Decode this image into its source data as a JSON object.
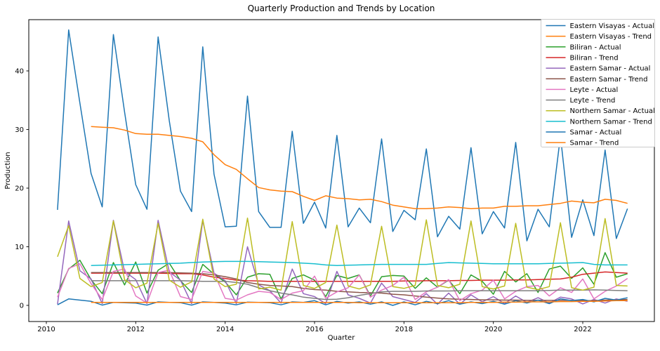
{
  "chart_data": {
    "type": "line",
    "title": "Quarterly Production and Trends by Location",
    "xlabel": "Quarter",
    "ylabel": "Production",
    "grid": false,
    "legend_position": "upper right",
    "xlim": [
      2009.64,
      2023.6
    ],
    "ylim": [
      -2.75,
      48.7
    ],
    "x_ticks": [
      2010,
      2012,
      2014,
      2016,
      2018,
      2020,
      2022
    ],
    "y_ticks": [
      0,
      10,
      20,
      30,
      40
    ],
    "x_actual": [
      2010.25,
      2010.5,
      2010.75,
      2011.0,
      2011.25,
      2011.5,
      2011.75,
      2012.0,
      2012.25,
      2012.5,
      2012.75,
      2013.0,
      2013.25,
      2013.5,
      2013.75,
      2014.0,
      2014.25,
      2014.5,
      2014.75,
      2015.0,
      2015.25,
      2015.5,
      2015.75,
      2016.0,
      2016.25,
      2016.5,
      2016.75,
      2017.0,
      2017.25,
      2017.5,
      2017.75,
      2018.0,
      2018.25,
      2018.5,
      2018.75,
      2019.0,
      2019.25,
      2019.5,
      2019.75,
      2020.0,
      2020.25,
      2020.5,
      2020.75,
      2021.0,
      2021.25,
      2021.5,
      2021.75,
      2022.0,
      2022.25,
      2022.5,
      2022.75,
      2023.0
    ],
    "x_trend": [
      2011.0,
      2011.25,
      2011.5,
      2011.75,
      2012.0,
      2012.25,
      2012.5,
      2012.75,
      2013.0,
      2013.25,
      2013.5,
      2013.75,
      2014.0,
      2014.25,
      2014.5,
      2014.75,
      2015.0,
      2015.25,
      2015.5,
      2015.75,
      2016.0,
      2016.25,
      2016.5,
      2016.75,
      2017.0,
      2017.25,
      2017.5,
      2017.75,
      2018.0,
      2018.25,
      2018.5,
      2018.75,
      2019.0,
      2019.25,
      2019.5,
      2019.75,
      2020.0,
      2020.25,
      2020.5,
      2020.75,
      2021.0,
      2021.25,
      2021.5,
      2021.75,
      2022.0,
      2022.25,
      2022.5,
      2022.75,
      2023.0
    ],
    "series": [
      {
        "name": "Eastern Visayas - Actual",
        "color": "#1f77b4",
        "x": "x_actual",
        "values": [
          16.3,
          47.0,
          34.5,
          22.5,
          16.8,
          46.2,
          33.0,
          20.6,
          16.4,
          45.8,
          31.5,
          19.5,
          16.0,
          44.1,
          22.4,
          13.4,
          13.5,
          35.7,
          16.0,
          13.3,
          13.3,
          29.7,
          14.0,
          17.6,
          13.2,
          29.0,
          13.4,
          16.6,
          14.1,
          28.4,
          12.6,
          16.2,
          14.6,
          26.7,
          11.7,
          15.2,
          13.0,
          26.9,
          12.2,
          16.0,
          13.2,
          27.8,
          11.0,
          16.4,
          13.4,
          28.9,
          11.6,
          18.0,
          11.9,
          26.5,
          11.4,
          16.5
        ]
      },
      {
        "name": "Eastern Visayas - Trend",
        "color": "#ff7f0e",
        "x": "x_trend",
        "values": [
          30.5,
          30.4,
          30.3,
          29.9,
          29.3,
          29.2,
          29.2,
          29.0,
          28.8,
          28.5,
          27.9,
          25.7,
          24.0,
          23.2,
          21.6,
          20.1,
          19.7,
          19.5,
          19.4,
          18.6,
          17.9,
          18.7,
          18.3,
          18.2,
          18.0,
          18.1,
          17.7,
          17.1,
          16.8,
          16.5,
          16.5,
          16.6,
          16.8,
          16.7,
          16.5,
          16.6,
          16.6,
          16.9,
          16.9,
          17.0,
          17.0,
          17.2,
          17.4,
          17.8,
          17.6,
          17.5,
          18.1,
          17.9,
          17.4
        ]
      },
      {
        "name": "Biliran - Actual",
        "color": "#2ca02c",
        "x": "x_actual",
        "values": [
          2.1,
          6.2,
          7.7,
          4.4,
          2.0,
          7.3,
          3.5,
          7.4,
          2.1,
          6.0,
          7.2,
          4.2,
          2.2,
          7.0,
          5.3,
          4.0,
          1.8,
          4.8,
          5.4,
          5.3,
          1.1,
          4.6,
          5.2,
          4.3,
          1.5,
          5.1,
          4.6,
          5.2,
          1.6,
          4.9,
          5.1,
          5.0,
          2.9,
          4.7,
          3.1,
          4.3,
          2.0,
          5.2,
          4.1,
          1.9,
          5.8,
          4.0,
          5.4,
          2.2,
          6.2,
          6.7,
          4.6,
          6.4,
          3.6,
          9.0,
          4.8,
          5.4
        ]
      },
      {
        "name": "Biliran - Trend",
        "color": "#d62728",
        "x": "x_trend",
        "values": [
          5.5,
          5.5,
          5.5,
          5.5,
          5.5,
          5.5,
          5.5,
          5.45,
          5.4,
          5.4,
          5.2,
          4.8,
          4.6,
          4.3,
          4.2,
          4.15,
          4.1,
          4.1,
          4.1,
          4.1,
          4.1,
          4.1,
          4.1,
          4.1,
          4.1,
          4.1,
          4.1,
          4.1,
          4.15,
          4.15,
          4.2,
          4.2,
          4.2,
          4.25,
          4.25,
          4.3,
          4.3,
          4.3,
          4.35,
          4.35,
          4.4,
          4.45,
          4.5,
          4.8,
          5.3,
          5.5,
          5.7,
          5.6,
          5.5
        ]
      },
      {
        "name": "Eastern Samar - Actual",
        "color": "#9467bd",
        "x": "x_actual",
        "values": [
          0.2,
          14.4,
          5.9,
          4.5,
          0.3,
          14.5,
          5.8,
          4.4,
          0.3,
          14.5,
          5.7,
          4.3,
          0.3,
          14.5,
          5.5,
          4.2,
          0.3,
          10.0,
          3.5,
          2.5,
          0.4,
          6.2,
          2.0,
          1.5,
          0.3,
          5.8,
          1.8,
          1.2,
          0.4,
          3.8,
          1.5,
          1.0,
          0.5,
          2.0,
          0.2,
          2.1,
          0.2,
          1.8,
          0.6,
          1.5,
          0.3,
          1.6,
          0.5,
          1.3,
          0.4,
          1.4,
          1.1,
          0.25,
          1.0,
          0.4,
          1.1,
          0.7
        ]
      },
      {
        "name": "Eastern Samar - Trend",
        "color": "#8c564b",
        "x": "x_trend",
        "values": [
          5.6,
          5.6,
          5.6,
          5.6,
          5.6,
          5.6,
          5.6,
          5.6,
          5.55,
          5.5,
          5.4,
          5.2,
          4.9,
          4.5,
          3.9,
          3.6,
          3.4,
          3.3,
          3.2,
          2.9,
          2.7,
          2.6,
          2.4,
          2.3,
          2.2,
          2.15,
          2.1,
          1.9,
          1.8,
          1.6,
          1.4,
          1.25,
          1.1,
          1.05,
          1.0,
          0.95,
          0.95,
          0.9,
          0.9,
          0.85,
          0.85,
          0.85,
          0.85,
          0.85,
          0.8,
          0.8,
          0.9,
          0.95,
          1.0
        ]
      },
      {
        "name": "Leyte - Actual",
        "color": "#e377c2",
        "x": "x_actual",
        "values": [
          1.4,
          6.3,
          7.1,
          3.7,
          1.0,
          5.8,
          6.2,
          1.6,
          0.4,
          5.6,
          6.0,
          1.5,
          1.0,
          5.8,
          5.5,
          1.2,
          0.9,
          1.8,
          2.4,
          2.2,
          1.0,
          2.1,
          2.5,
          5.0,
          1.2,
          2.3,
          3.0,
          5.2,
          1.4,
          2.6,
          3.4,
          4.8,
          1.0,
          2.3,
          3.1,
          4.4,
          0.8,
          2.0,
          2.6,
          4.3,
          1.1,
          2.4,
          3.2,
          3.4,
          1.6,
          3.0,
          2.2,
          4.5,
          1.1,
          2.4,
          3.3,
          4.6
        ]
      },
      {
        "name": "Leyte - Trend",
        "color": "#7f7f7f",
        "x": "x_trend",
        "values": [
          4.2,
          4.2,
          4.2,
          4.2,
          4.2,
          4.2,
          4.2,
          4.2,
          4.2,
          4.15,
          4.1,
          4.1,
          4.1,
          3.9,
          3.6,
          3.0,
          2.5,
          2.1,
          1.8,
          1.4,
          1.2,
          1.0,
          1.05,
          1.3,
          1.7,
          2.0,
          2.3,
          2.4,
          2.4,
          2.4,
          2.45,
          2.45,
          2.45,
          2.5,
          2.5,
          2.5,
          2.5,
          2.5,
          2.5,
          2.5,
          2.5,
          2.55,
          2.6,
          2.6,
          2.6,
          2.65,
          2.6,
          2.55,
          2.5
        ]
      },
      {
        "name": "Northern Samar - Actual",
        "color": "#bcbd22",
        "x": "x_actual",
        "values": [
          8.3,
          13.6,
          4.6,
          3.2,
          3.9,
          14.4,
          4.4,
          3.0,
          3.8,
          14.0,
          4.3,
          3.1,
          4.0,
          14.7,
          4.5,
          3.2,
          3.6,
          14.9,
          2.8,
          3.1,
          2.6,
          14.3,
          3.4,
          2.9,
          3.9,
          13.7,
          3.3,
          2.8,
          3.5,
          13.5,
          3.2,
          2.9,
          3.4,
          14.6,
          3.4,
          3.0,
          3.6,
          14.4,
          3.2,
          2.8,
          3.3,
          14.0,
          3.1,
          2.7,
          3.2,
          14.1,
          3.0,
          2.6,
          3.1,
          14.8,
          3.4,
          3.3
        ]
      },
      {
        "name": "Northern Samar - Trend",
        "color": "#17becf",
        "x": "x_trend",
        "values": [
          6.8,
          6.85,
          6.9,
          6.95,
          7.0,
          7.05,
          7.1,
          7.15,
          7.2,
          7.3,
          7.4,
          7.45,
          7.5,
          7.5,
          7.5,
          7.45,
          7.4,
          7.35,
          7.3,
          7.2,
          7.1,
          6.9,
          6.8,
          6.85,
          6.9,
          6.95,
          7.0,
          7.0,
          7.0,
          7.0,
          7.0,
          7.15,
          7.3,
          7.25,
          7.2,
          7.15,
          7.1,
          7.1,
          7.1,
          7.1,
          7.1,
          7.15,
          7.2,
          7.25,
          7.3,
          7.0,
          6.9,
          6.9,
          6.9
        ]
      },
      {
        "name": "Samar - Actual",
        "color": "#1f77b4",
        "x": "x_actual",
        "values": [
          0.1,
          1.1,
          0.9,
          0.7,
          0.05,
          0.5,
          0.45,
          0.4,
          0.05,
          0.6,
          0.5,
          0.45,
          0.05,
          0.6,
          0.5,
          0.4,
          0.1,
          0.55,
          0.5,
          0.45,
          0.1,
          0.6,
          0.5,
          0.8,
          0.1,
          0.7,
          0.4,
          0.6,
          0.2,
          0.6,
          0.0,
          0.6,
          0.1,
          0.7,
          0.3,
          0.8,
          0.2,
          0.6,
          0.3,
          0.7,
          0.2,
          0.8,
          0.4,
          0.9,
          0.3,
          1.1,
          0.8,
          1.0,
          0.6,
          1.2,
          0.9,
          1.3
        ]
      },
      {
        "name": "Samar - Trend",
        "color": "#ff7f0e",
        "x": "x_trend",
        "values": [
          0.5,
          0.5,
          0.5,
          0.5,
          0.5,
          0.5,
          0.5,
          0.5,
          0.5,
          0.5,
          0.5,
          0.5,
          0.5,
          0.5,
          0.5,
          0.5,
          0.5,
          0.5,
          0.5,
          0.5,
          0.5,
          0.5,
          0.5,
          0.5,
          0.45,
          0.45,
          0.45,
          0.45,
          0.45,
          0.45,
          0.45,
          0.45,
          0.45,
          0.45,
          0.5,
          0.5,
          0.5,
          0.55,
          0.55,
          0.6,
          0.6,
          0.6,
          0.65,
          0.65,
          0.7,
          0.7,
          0.75,
          0.8,
          0.8
        ]
      }
    ]
  }
}
